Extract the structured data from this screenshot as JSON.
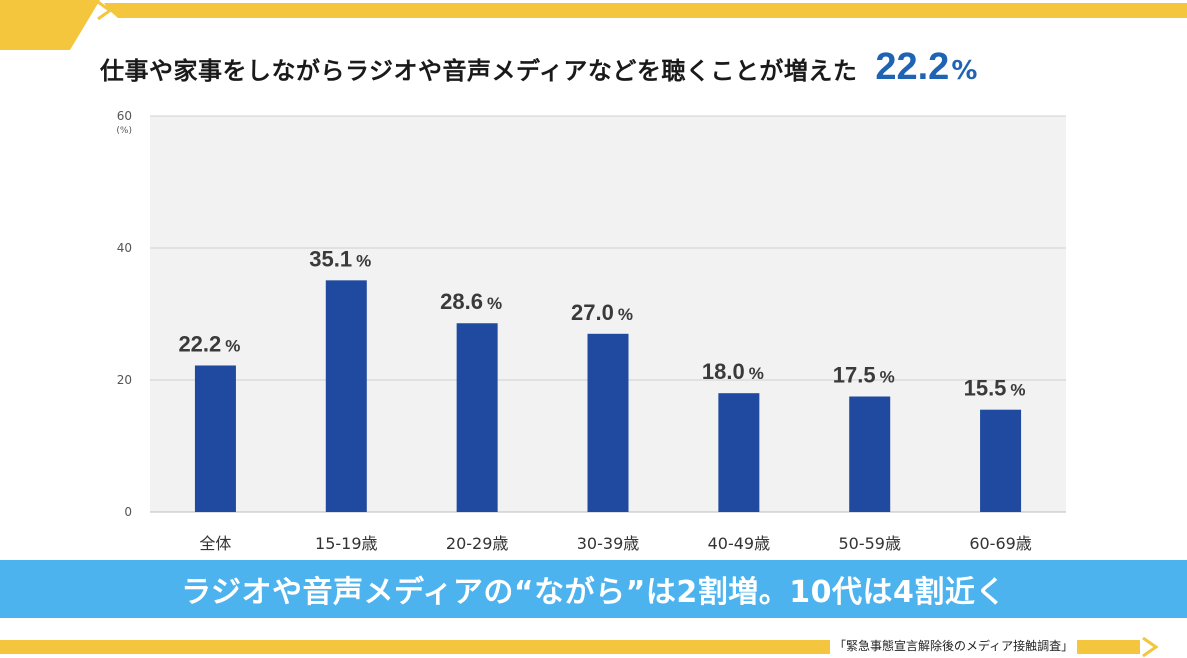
{
  "header": {
    "headline": "仕事や家事をしながらラジオや音声メディアなどを聴くことが増えた",
    "headline_value": "22.2",
    "headline_unit": "%"
  },
  "colors": {
    "accent_yellow": "#f4c63d",
    "bar": "#1f4aa0",
    "headline_value": "#1f64b4",
    "banner": "#4db3ee",
    "plot_bg": "#f2f2f2"
  },
  "chart_data": {
    "type": "bar",
    "categories": [
      "全体",
      "15-19歳",
      "20-29歳",
      "30-39歳",
      "40-49歳",
      "50-59歳",
      "60-69歳"
    ],
    "values": [
      22.2,
      35.1,
      28.6,
      27.0,
      18.0,
      17.5,
      15.5
    ],
    "value_labels": [
      "22.2",
      "35.1",
      "28.6",
      "27.0",
      "18.0",
      "17.5",
      "15.5"
    ],
    "value_unit": "%",
    "y_unit_label": "(%)",
    "ylim": [
      0,
      60
    ],
    "yticks": [
      0,
      20,
      40,
      60
    ],
    "grid": true
  },
  "banner": {
    "text": "ラジオや音声メディアの“ながら”は2割増。10代は4割近く"
  },
  "source": {
    "text": "「緊急事態宣言解除後のメディア接触調査」"
  }
}
